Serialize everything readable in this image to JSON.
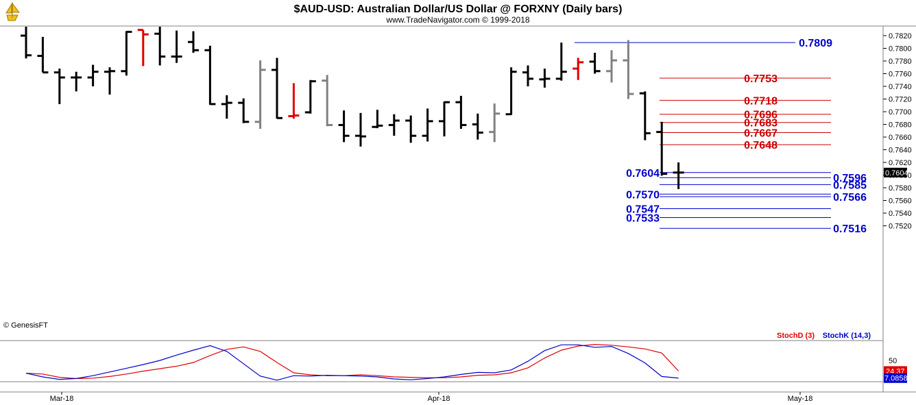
{
  "title": "$AUD-USD:  Australian Dollar/US Dollar @ FORXNY  (Daily bars)",
  "subtitle": "www.TradeNavigator.com © 1999-2018",
  "watermark": "© GenesisFT",
  "logo_icon": "sailboat-logo-icon",
  "colors": {
    "up": "#000000",
    "red": "#e00000",
    "gray": "#808080",
    "blue": "#0000cc",
    "levelRed": "#cc0000",
    "grid": "#808080"
  },
  "chart_data": [
    {
      "type": "ohlc",
      "title": "$AUD-USD:  Australian Dollar/US Dollar @ FORXNY  (Daily bars)",
      "ylim": [
        0.75,
        0.7825
      ],
      "y_ticks": [
        "0.7820",
        "0.7800",
        "0.7780",
        "0.7760",
        "0.7740",
        "0.7720",
        "0.7700",
        "0.7680",
        "0.7660",
        "0.7640",
        "0.7620",
        "0.7600",
        "0.7580",
        "0.7560",
        "0.7540",
        "0.7520"
      ],
      "x_ticks": [
        "Mar-18",
        "Apr-18",
        "May-18"
      ],
      "current_price": "0.7604",
      "bars": [
        {
          "h": 0.7842,
          "l": 0.7784,
          "o": 0.782,
          "c": 0.7789,
          "color": "black"
        },
        {
          "h": 0.7818,
          "l": 0.7762,
          "o": 0.7788,
          "c": 0.7762,
          "color": "black"
        },
        {
          "h": 0.7768,
          "l": 0.7712,
          "o": 0.7762,
          "c": 0.7754,
          "color": "black"
        },
        {
          "h": 0.7763,
          "l": 0.7732,
          "o": 0.7754,
          "c": 0.7754,
          "color": "black"
        },
        {
          "h": 0.7774,
          "l": 0.774,
          "o": 0.7754,
          "c": 0.7763,
          "color": "black"
        },
        {
          "h": 0.777,
          "l": 0.7727,
          "o": 0.7763,
          "c": 0.7764,
          "color": "black"
        },
        {
          "h": 0.7827,
          "l": 0.7757,
          "o": 0.7764,
          "c": 0.7826,
          "color": "black"
        },
        {
          "h": 0.7829,
          "l": 0.7772,
          "o": 0.7829,
          "c": 0.7822,
          "color": "red"
        },
        {
          "h": 0.7845,
          "l": 0.7773,
          "o": 0.7823,
          "c": 0.7787,
          "color": "black"
        },
        {
          "h": 0.7828,
          "l": 0.7777,
          "o": 0.7787,
          "c": 0.7787,
          "color": "black"
        },
        {
          "h": 0.7827,
          "l": 0.7793,
          "o": 0.781,
          "c": 0.7797,
          "color": "black"
        },
        {
          "h": 0.7804,
          "l": 0.7711,
          "o": 0.7797,
          "c": 0.7712,
          "color": "black"
        },
        {
          "h": 0.7726,
          "l": 0.7689,
          "o": 0.7712,
          "c": 0.7714,
          "color": "black"
        },
        {
          "h": 0.7721,
          "l": 0.7682,
          "o": 0.7714,
          "c": 0.7684,
          "color": "black"
        },
        {
          "h": 0.7781,
          "l": 0.7673,
          "o": 0.7684,
          "c": 0.7766,
          "color": "gray"
        },
        {
          "h": 0.7785,
          "l": 0.7689,
          "o": 0.7766,
          "c": 0.769,
          "color": "black"
        },
        {
          "h": 0.7745,
          "l": 0.7689,
          "o": 0.7693,
          "c": 0.7694,
          "color": "red"
        },
        {
          "h": 0.775,
          "l": 0.7697,
          "o": 0.7699,
          "c": 0.7748,
          "color": "black"
        },
        {
          "h": 0.7758,
          "l": 0.7677,
          "o": 0.7749,
          "c": 0.7679,
          "color": "gray"
        },
        {
          "h": 0.7702,
          "l": 0.7652,
          "o": 0.7679,
          "c": 0.7662,
          "color": "black"
        },
        {
          "h": 0.7698,
          "l": 0.7645,
          "o": 0.7662,
          "c": 0.7661,
          "color": "black"
        },
        {
          "h": 0.7703,
          "l": 0.7674,
          "o": 0.7676,
          "c": 0.7678,
          "color": "black"
        },
        {
          "h": 0.7696,
          "l": 0.7662,
          "o": 0.7679,
          "c": 0.7686,
          "color": "black"
        },
        {
          "h": 0.7694,
          "l": 0.7651,
          "o": 0.7686,
          "c": 0.7662,
          "color": "black"
        },
        {
          "h": 0.7705,
          "l": 0.7653,
          "o": 0.7662,
          "c": 0.7685,
          "color": "black"
        },
        {
          "h": 0.7716,
          "l": 0.7661,
          "o": 0.7685,
          "c": 0.7715,
          "color": "black"
        },
        {
          "h": 0.7725,
          "l": 0.7673,
          "o": 0.7715,
          "c": 0.7679,
          "color": "black"
        },
        {
          "h": 0.7697,
          "l": 0.7656,
          "o": 0.768,
          "c": 0.7667,
          "color": "black"
        },
        {
          "h": 0.7713,
          "l": 0.7652,
          "o": 0.7668,
          "c": 0.7697,
          "color": "gray"
        },
        {
          "h": 0.777,
          "l": 0.7695,
          "o": 0.7696,
          "c": 0.7763,
          "color": "black"
        },
        {
          "h": 0.7773,
          "l": 0.774,
          "o": 0.7762,
          "c": 0.7752,
          "color": "black"
        },
        {
          "h": 0.7768,
          "l": 0.7738,
          "o": 0.7751,
          "c": 0.7752,
          "color": "black"
        },
        {
          "h": 0.7809,
          "l": 0.7749,
          "o": 0.7752,
          "c": 0.7763,
          "color": "black"
        },
        {
          "h": 0.7785,
          "l": 0.775,
          "o": 0.7768,
          "c": 0.7778,
          "color": "red"
        },
        {
          "h": 0.7793,
          "l": 0.776,
          "o": 0.7779,
          "c": 0.7764,
          "color": "black"
        },
        {
          "h": 0.7797,
          "l": 0.7746,
          "o": 0.7764,
          "c": 0.7781,
          "color": "gray"
        },
        {
          "h": 0.7813,
          "l": 0.772,
          "o": 0.7781,
          "c": 0.7728,
          "color": "gray"
        },
        {
          "h": 0.7732,
          "l": 0.7655,
          "o": 0.7729,
          "c": 0.7666,
          "color": "black"
        },
        {
          "h": 0.7684,
          "l": 0.7599,
          "o": 0.7668,
          "c": 0.7602,
          "color": "black"
        },
        {
          "h": 0.762,
          "l": 0.7578,
          "o": 0.7604,
          "c": 0.7604,
          "color": "black"
        }
      ],
      "red_levels": [
        "0.7753",
        "0.7718",
        "0.7696",
        "0.7683",
        "0.7667",
        "0.7648"
      ],
      "blue_levels": [
        {
          "value": "0.7809",
          "side": "right"
        },
        {
          "value": "0.7604",
          "side": "left"
        },
        {
          "value": "0.7596",
          "side": "right"
        },
        {
          "value": "0.7585",
          "side": "right"
        },
        {
          "value": "0.7570",
          "side": "left"
        },
        {
          "value": "0.7566",
          "side": "right"
        },
        {
          "value": "0.7547",
          "side": "left"
        },
        {
          "value": "0.7533",
          "side": "left"
        },
        {
          "value": "0.7516",
          "side": "right"
        }
      ]
    },
    {
      "type": "line",
      "ylim": [
        0,
        100
      ],
      "y_ticks": [
        "50"
      ],
      "legend": [
        {
          "name": "StochD (3)",
          "color": "#e00000"
        },
        {
          "name": "StochK (14,3)",
          "color": "#0000cc"
        }
      ],
      "series": [
        {
          "name": "StochD (3)",
          "last_value": "24.37",
          "values": [
            19,
            17,
            9,
            6,
            7,
            11,
            17,
            24,
            30,
            36,
            45,
            62,
            77,
            83,
            72,
            45,
            20,
            15,
            13,
            13,
            15,
            13,
            10,
            9,
            8,
            8,
            10,
            14,
            15,
            20,
            32,
            56,
            75,
            85,
            89,
            87,
            83,
            78,
            68,
            24.37
          ]
        },
        {
          "name": "StochK (14,3)",
          "last_value": "7.0858",
          "values": [
            19,
            10,
            4,
            6,
            13,
            22,
            31,
            40,
            50,
            63,
            75,
            86,
            72,
            42,
            12,
            2,
            13,
            12,
            14,
            13,
            12,
            10,
            5,
            3,
            6,
            10,
            16,
            21,
            20,
            27,
            48,
            74,
            88,
            88,
            82,
            84,
            67,
            44,
            11,
            7.0858
          ]
        }
      ]
    }
  ]
}
